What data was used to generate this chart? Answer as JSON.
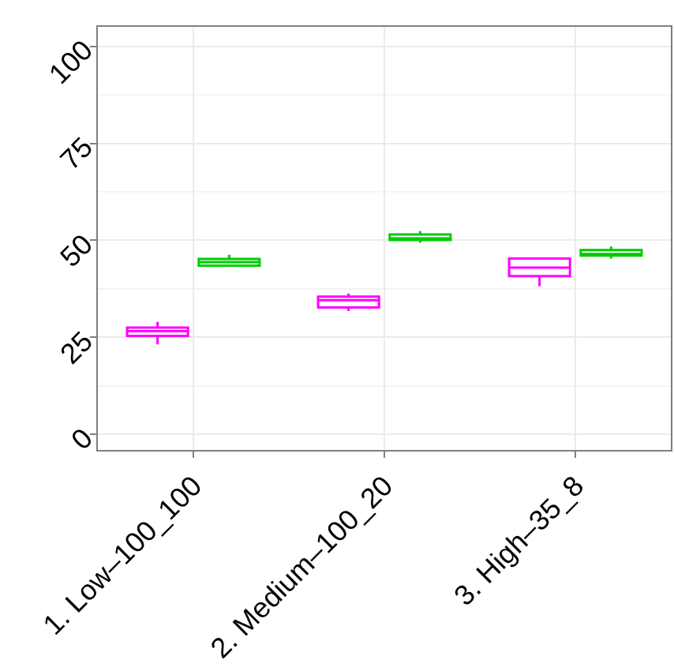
{
  "chart_data": {
    "type": "box",
    "categories": [
      "1. Low–100_100",
      "2. Medium–100_20",
      "3. High–35_8"
    ],
    "series": [
      {
        "color": "#ff00ff",
        "boxes": [
          {
            "low": 23.2,
            "q1": 25.4,
            "median": 26.6,
            "q3": 27.5,
            "high": 29.0
          },
          {
            "low": 31.8,
            "q1": 32.7,
            "median": 34.6,
            "q3": 35.5,
            "high": 36.3
          },
          {
            "low": 38.2,
            "q1": 40.8,
            "median": 43.0,
            "q3": 45.3,
            "high": 45.3
          }
        ]
      },
      {
        "color": "#00cc00",
        "boxes": [
          {
            "low": 43.5,
            "q1": 43.5,
            "median": 44.4,
            "q3": 45.2,
            "high": 46.3
          },
          {
            "low": 49.4,
            "q1": 50.1,
            "median": 50.4,
            "q3": 51.5,
            "high": 52.4
          },
          {
            "low": 45.3,
            "q1": 46.1,
            "median": 46.4,
            "q3": 47.5,
            "high": 48.4
          }
        ]
      }
    ],
    "ylim": [
      -4,
      105
    ],
    "yticks": [
      0,
      25,
      50,
      75,
      100
    ],
    "grid": true
  }
}
